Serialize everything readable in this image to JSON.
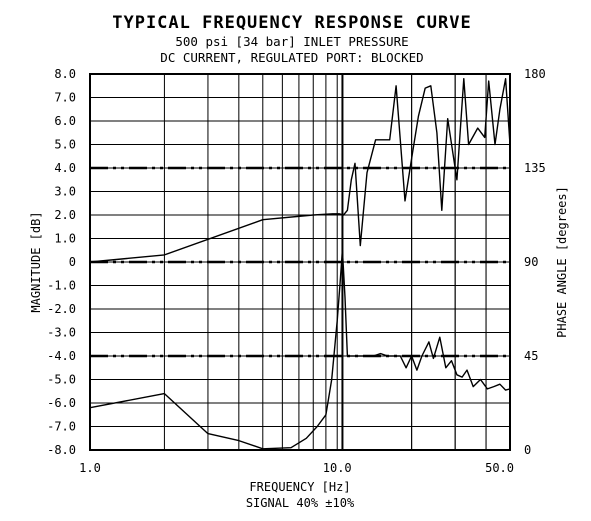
{
  "chart_data": {
    "type": "line",
    "title": "TYPICAL FREQUENCY RESPONSE CURVE",
    "subtitle_lines": [
      "500 psi [34 bar] INLET PRESSURE",
      "DC CURRENT, REGULATED PORT: BLOCKED"
    ],
    "xlabel_lines": [
      "FREQUENCY [Hz]",
      "SIGNAL 40% ±10%"
    ],
    "ylabel_left": "MAGNITUDE [dB]",
    "ylabel_right": "PHASE ANGLE [degrees]",
    "x_scale": "log",
    "xlim": [
      1.0,
      50.0
    ],
    "x_tick_labels": [
      "1.0",
      "10.0",
      "50.0"
    ],
    "ylim_left": [
      -8.0,
      8.0
    ],
    "y_left_tick_labels": [
      "8.0",
      "7.0",
      "6.0",
      "5.0",
      "4.0",
      "3.0",
      "2.0",
      "1.0",
      "0",
      "-1.0",
      "-2.0",
      "-3.0",
      "-4.0",
      "-5.0",
      "-6.0",
      "-7.0",
      "-8.0"
    ],
    "ylim_right": [
      0,
      180
    ],
    "y_right_tick_labels": [
      "180",
      "135",
      "90",
      "45",
      "0"
    ],
    "grid": true,
    "reference_lines_dB": [
      4.0,
      0.0,
      -4.0
    ],
    "marker_line_x": 10.5,
    "series": [
      {
        "axis": "left",
        "x": [
          1.0,
          2.0,
          5.0,
          8.0,
          9.6,
          10.2,
          10.6,
          11.0,
          11.4,
          11.8,
          12.4,
          13.2,
          14.3,
          15.3,
          16.3,
          17.3,
          18.8,
          20.2,
          21.3,
          22.7,
          23.9,
          25.3,
          26.5,
          28.0,
          30.5,
          32.5,
          34.0,
          37.0,
          39.5,
          41.0,
          43.5,
          45.5,
          48.0,
          50.0
        ],
        "y": [
          0.0,
          0.3,
          1.8,
          2.0,
          2.05,
          2.05,
          2.0,
          2.2,
          3.5,
          4.2,
          0.7,
          3.8,
          5.2,
          5.2,
          5.2,
          7.5,
          2.6,
          4.7,
          6.2,
          7.4,
          7.5,
          5.5,
          2.2,
          6.1,
          3.5,
          7.8,
          5.0,
          5.7,
          5.3,
          7.7,
          5.0,
          6.5,
          7.8,
          5.0
        ]
      },
      {
        "axis": "left",
        "x": [
          1.0,
          2.0,
          3.0,
          4.0,
          5.0,
          6.5,
          7.5,
          8.3,
          9.0,
          9.5,
          9.8,
          10.0,
          10.25,
          10.5,
          10.75,
          11.0,
          12.0,
          13.0,
          14.0,
          15.0,
          16.0,
          18.0,
          19.0,
          20.0,
          21.0,
          22.0,
          23.5,
          24.5,
          26.0,
          27.5,
          29.0,
          30.5,
          32.0,
          33.5,
          35.5,
          38.0,
          40.5,
          43.0,
          45.5,
          48.0,
          50.0
        ],
        "y": [
          -6.2,
          -5.6,
          -7.3,
          -7.6,
          -7.95,
          -7.9,
          -7.5,
          -7.0,
          -6.5,
          -5.0,
          -3.5,
          -2.5,
          -1.0,
          0.5,
          -1.5,
          -4.0,
          -4.0,
          -4.0,
          -4.0,
          -3.9,
          -4.0,
          -4.0,
          -4.5,
          -4.0,
          -4.6,
          -4.0,
          -3.4,
          -4.1,
          -3.2,
          -4.5,
          -4.2,
          -4.8,
          -4.9,
          -4.6,
          -5.3,
          -5.0,
          -5.4,
          -5.3,
          -5.2,
          -5.45,
          -5.4
        ]
      }
    ]
  }
}
